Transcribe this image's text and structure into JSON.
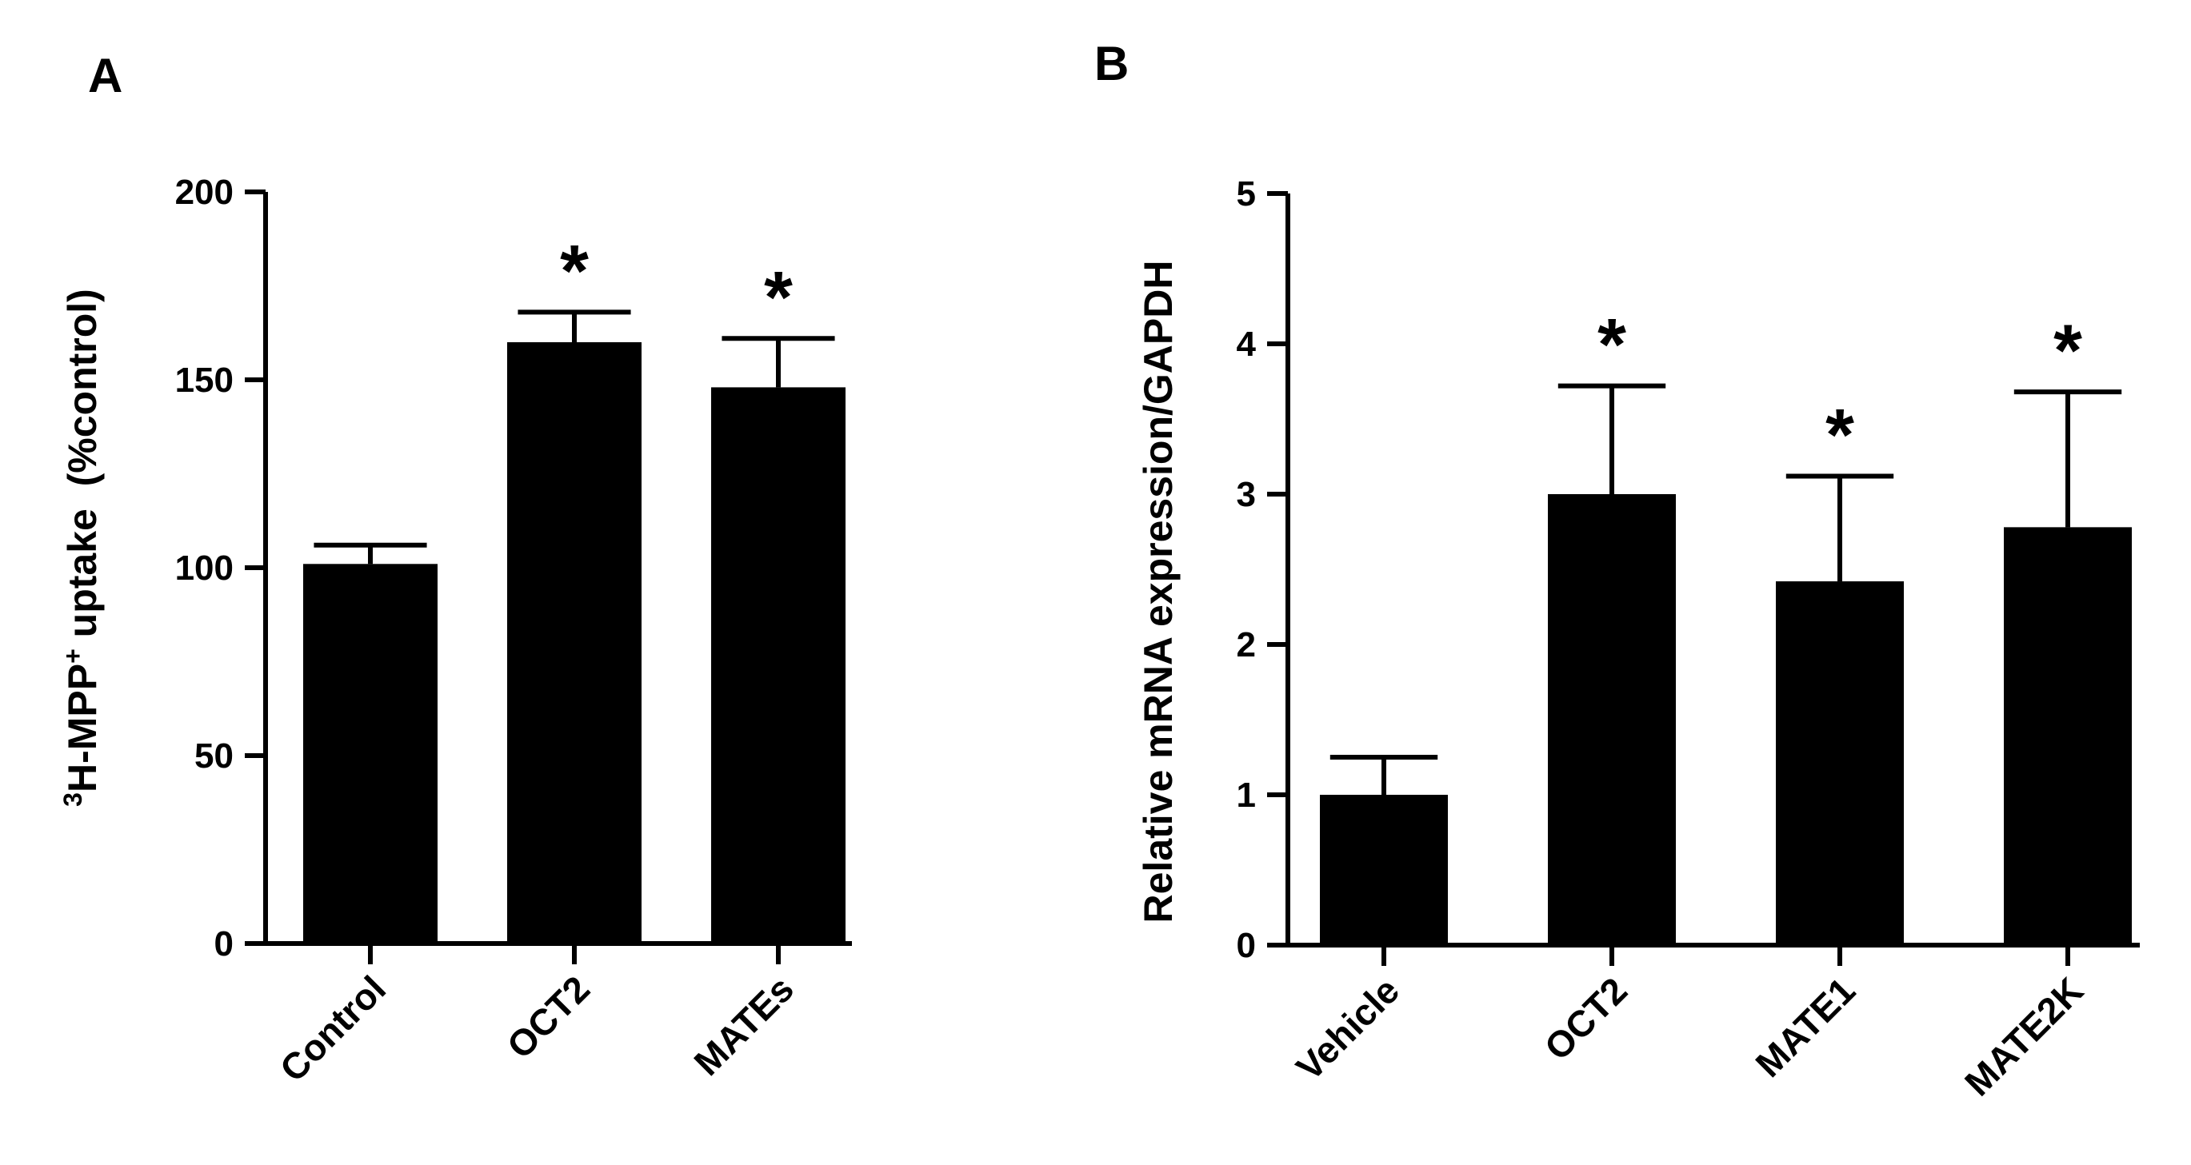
{
  "chart_data": [
    {
      "type": "bar",
      "panel": "A",
      "title": "",
      "ylabel": "3H-MPP+ uptake  (%control)",
      "ylabel_parts": {
        "sup1": "3",
        "main1": "H-MPP",
        "sup2": "+",
        "main2": " uptake  (%control)"
      },
      "xlabel": "",
      "categories": [
        "Control",
        "OCT2",
        "MATEs"
      ],
      "values": [
        101,
        160,
        148
      ],
      "errors": [
        5,
        8,
        13
      ],
      "significance": [
        "",
        "*",
        "*"
      ],
      "ylim": [
        0,
        200
      ],
      "yticks": [
        0,
        50,
        100,
        150,
        200
      ],
      "bar_color": "#000000",
      "grid": false
    },
    {
      "type": "bar",
      "panel": "B",
      "title": "",
      "ylabel": "Relative mRNA expression/GAPDH",
      "xlabel": "",
      "categories": [
        "Vehicle",
        "OCT2",
        "MATE1",
        "MATE2K"
      ],
      "values": [
        1.0,
        3.0,
        2.42,
        2.78
      ],
      "errors": [
        0.25,
        0.72,
        0.7,
        0.9
      ],
      "significance": [
        "",
        "*",
        "*",
        "*"
      ],
      "ylim": [
        0,
        5
      ],
      "yticks": [
        0,
        1,
        2,
        3,
        4,
        5
      ],
      "bar_color": "#000000",
      "grid": false
    }
  ]
}
